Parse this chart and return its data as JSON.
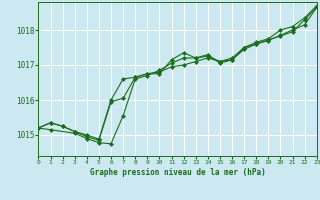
{
  "title": "Graphe pression niveau de la mer (hPa)",
  "bg_color": "#cce8f0",
  "grid_color": "#ffffff",
  "line_color": "#1a6e1a",
  "xmin": 0,
  "xmax": 23,
  "ymin": 1014.4,
  "ymax": 1018.8,
  "yticks": [
    1015,
    1016,
    1017,
    1018
  ],
  "xticks": [
    0,
    1,
    2,
    3,
    4,
    5,
    6,
    7,
    8,
    9,
    10,
    11,
    12,
    13,
    14,
    15,
    16,
    17,
    18,
    19,
    20,
    21,
    22,
    23
  ],
  "series1_x": [
    0,
    1,
    2,
    3,
    4,
    5,
    6,
    7,
    8,
    9,
    10,
    11,
    12,
    13,
    14,
    15,
    16,
    17,
    18,
    19,
    20,
    21,
    22,
    23
  ],
  "series1_y": [
    1015.2,
    1015.35,
    1015.25,
    1015.1,
    1014.95,
    1014.85,
    1015.95,
    1016.05,
    1016.65,
    1016.75,
    1016.75,
    1017.15,
    1017.35,
    1017.2,
    1017.3,
    1017.05,
    1017.15,
    1017.5,
    1017.65,
    1017.75,
    1018.0,
    1018.1,
    1018.35,
    1018.7
  ],
  "series2_x": [
    0,
    1,
    2,
    3,
    4,
    5,
    6,
    7,
    8,
    9,
    10,
    11,
    12,
    13,
    14,
    15,
    16,
    17,
    18,
    19,
    20,
    21,
    22,
    23
  ],
  "series2_y": [
    1015.2,
    1015.35,
    1015.25,
    1015.1,
    1015.0,
    1014.88,
    1016.0,
    1016.6,
    1016.65,
    1016.75,
    1016.8,
    1016.95,
    1017.0,
    1017.1,
    1017.2,
    1017.1,
    1017.2,
    1017.5,
    1017.6,
    1017.7,
    1017.85,
    1018.0,
    1018.15,
    1018.65
  ],
  "series3_x": [
    0,
    1,
    3,
    4,
    5,
    6,
    7,
    8,
    9,
    10,
    11,
    12,
    13,
    14,
    15,
    16,
    17,
    18,
    19,
    20,
    21,
    22,
    23
  ],
  "series3_y": [
    1015.2,
    1015.15,
    1015.05,
    1014.9,
    1014.78,
    1014.75,
    1015.55,
    1016.6,
    1016.7,
    1016.85,
    1017.05,
    1017.2,
    1017.2,
    1017.25,
    1017.1,
    1017.15,
    1017.45,
    1017.6,
    1017.72,
    1017.83,
    1017.95,
    1018.3,
    1018.65
  ]
}
